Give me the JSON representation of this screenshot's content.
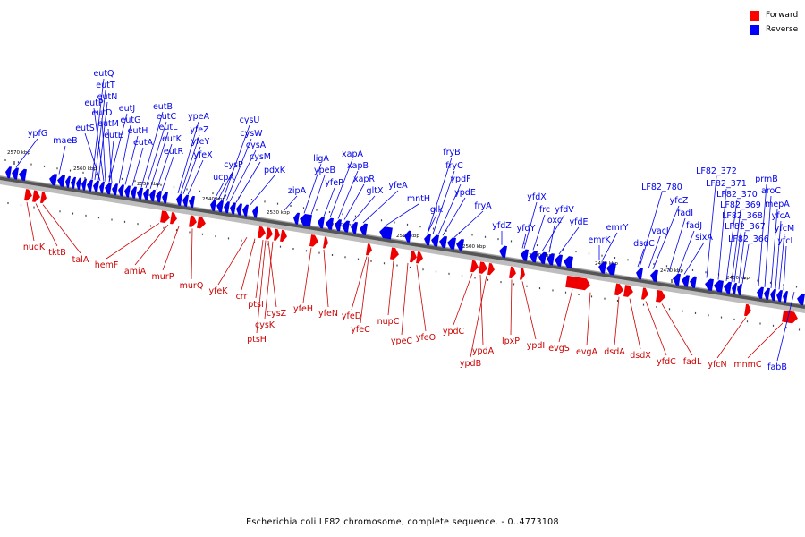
{
  "caption": "Escherichia coli LF82 chromosome, complete sequence. - 0..4773108",
  "legend": [
    {
      "label": "Forward",
      "color": "#ff0000"
    },
    {
      "label": "Reverse",
      "color": "#0000ff"
    }
  ],
  "scale_labels": [
    "2570 kbp",
    "2560 kbp",
    "2550 kbp",
    "2540 kbp",
    "2530 kbp",
    "2520 kbp",
    "2510 kbp",
    "2500 kbp",
    "2490 kbp",
    "2480 kbp",
    "2470 kbp",
    "2460 kbp"
  ],
  "reverse_genes": [
    "ypfG",
    "maeB",
    "eutQ",
    "eutT",
    "eutN",
    "eutP",
    "eutJ",
    "eutD",
    "eutS",
    "eutM",
    "eutG",
    "eutE",
    "eutH",
    "eutB",
    "eutC",
    "eutA",
    "eutL",
    "eutK",
    "eutR",
    "ypeA",
    "yfeZ",
    "yfeY",
    "yfeX",
    "cysU",
    "cysW",
    "cysP",
    "cysA",
    "ucpA",
    "cysM",
    "pdxK",
    "zipA",
    "ligA",
    "ypeB",
    "xapA",
    "yfeR",
    "xapB",
    "xapR",
    "gltX",
    "yfeA",
    "mntH",
    "fryB",
    "fryC",
    "ypdF",
    "glk",
    "ypdE",
    "fryA",
    "yfdZ",
    "yfdX",
    "yfdY",
    "frc",
    "yfdV",
    "oxc",
    "yfdE",
    "emrY",
    "emrK",
    "LF82_780",
    "yfcZ",
    "vacJ",
    "dsdC",
    "fadI",
    "fadJ",
    "sixA",
    "LF82_372",
    "LF82_371",
    "LF82_370",
    "LF82_369",
    "LF82_368",
    "LF82_367",
    "LF82_366",
    "prmB",
    "aroC",
    "mepA",
    "yfcA",
    "yfcM",
    "yfcL",
    "fabB"
  ],
  "forward_genes": [
    "nudK",
    "tktB",
    "talA",
    "hemF",
    "amiA",
    "murP",
    "murQ",
    "yfeK",
    "crr",
    "ptsI",
    "cysZ",
    "ptsH",
    "cysK",
    "yfeH",
    "yfeN",
    "yfeD",
    "yfeC",
    "nupC",
    "ypeC",
    "yfeO",
    "ypdC",
    "ypdA",
    "ypdB",
    "lpxP",
    "ypdI",
    "evgS",
    "evgA",
    "dsdA",
    "dsdX",
    "yfdC",
    "fadL",
    "yfcN",
    "mnmC"
  ]
}
